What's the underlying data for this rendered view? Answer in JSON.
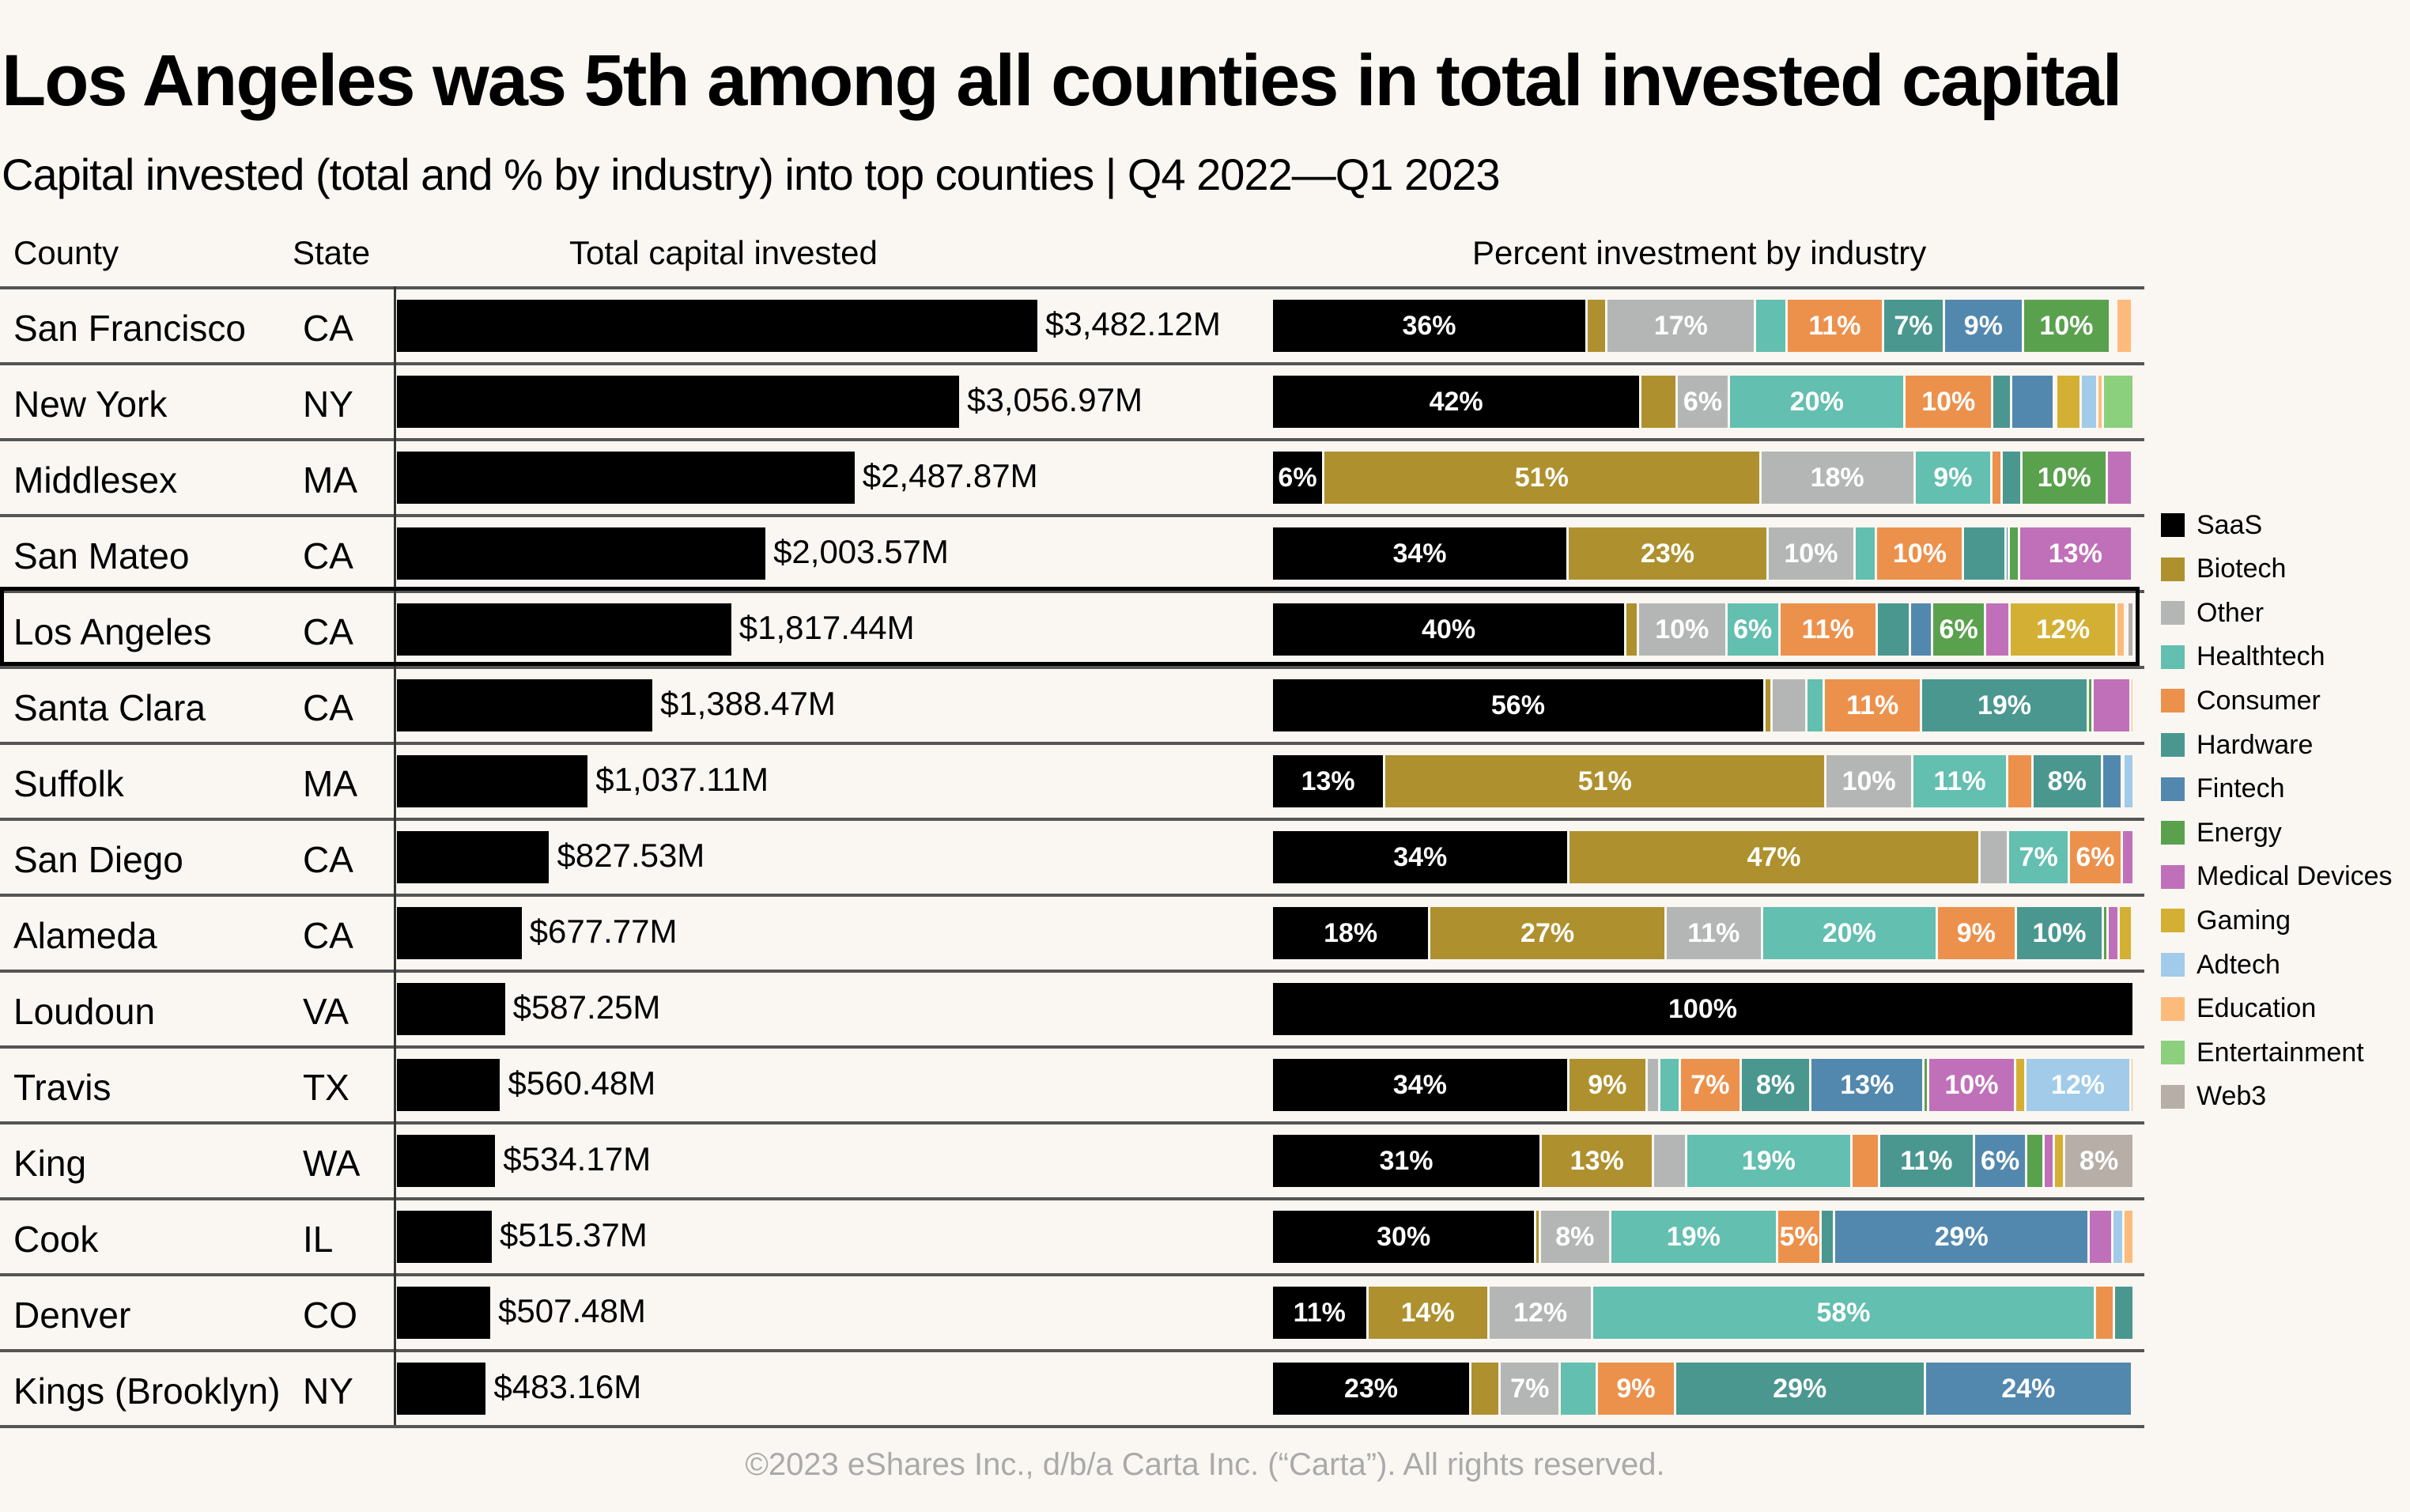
{
  "title": "Los Angeles was 5th among all counties in total invested capital",
  "subtitle": "Capital invested (total and % by industry) into top counties  |  Q4 2022—Q1 2023",
  "headers": {
    "county": "County",
    "state": "State",
    "total": "Total capital invested",
    "percent": "Percent investment by industry"
  },
  "footer": "©2023 eShares Inc., d/b/a Carta Inc. (“Carta”). All rights reserved.",
  "highlighted_county": "Los Angeles",
  "chart_data": [
    {
      "type": "bar",
      "title": "Total capital invested",
      "unit": "$M",
      "categories": [
        "San Francisco",
        "New York",
        "Middlesex",
        "San Mateo",
        "Los Angeles",
        "Santa Clara",
        "Suffolk",
        "San Diego",
        "Alameda",
        "Loudoun",
        "Travis",
        "King",
        "Cook",
        "Denver",
        "Kings (Brooklyn)"
      ],
      "states": [
        "CA",
        "NY",
        "MA",
        "CA",
        "CA",
        "CA",
        "MA",
        "CA",
        "CA",
        "VA",
        "TX",
        "WA",
        "IL",
        "CO",
        "NY"
      ],
      "values": [
        3482.12,
        3056.97,
        2487.87,
        2003.57,
        1817.44,
        1388.47,
        1037.11,
        827.53,
        677.77,
        587.25,
        560.48,
        534.17,
        515.37,
        507.48,
        483.16
      ],
      "labels": [
        "$3,482.12M",
        "$3,056.97M",
        "$2,487.87M",
        "$2,003.57M",
        "$1,817.44M",
        "$1,388.47M",
        "$1,037.11M",
        "$827.53M",
        "$677.77M",
        "$587.25M",
        "$560.48M",
        "$534.17M",
        "$515.37M",
        "$507.48M",
        "$483.16M"
      ]
    },
    {
      "type": "bar",
      "stacked": "percent",
      "title": "Percent investment by industry",
      "legend_position": "right",
      "series_names": [
        "SaaS",
        "Biotech",
        "Other",
        "Healthtech",
        "Consumer",
        "Hardware",
        "Fintech",
        "Energy",
        "Medical Devices",
        "Gaming",
        "Adtech",
        "Education",
        "Entertainment",
        "Web3"
      ],
      "colors": [
        "#000000",
        "#ae912e",
        "#b4b6b6",
        "#63bfaf",
        "#ec914c",
        "#4a9790",
        "#5388ae",
        "#5aa14e",
        "#c070b8",
        "#d3b034",
        "#a1cbe8",
        "#fdbb7b",
        "#8bd07d",
        "#b7aea8"
      ],
      "rows": [
        [
          36,
          2.3,
          17,
          3.6,
          11,
          7,
          9,
          10,
          0.3,
          0.1,
          0.3,
          1.8,
          0,
          0.2
        ],
        [
          42,
          4.1,
          6,
          20,
          10,
          2.1,
          4.9,
          0,
          0.3,
          2.8,
          1.9,
          0.6,
          3.5,
          0
        ],
        [
          6,
          51,
          18,
          9,
          1.2,
          2.3,
          0,
          10,
          2.9,
          0.2,
          0,
          0,
          0,
          0
        ],
        [
          34,
          23,
          10,
          2.5,
          10,
          4.9,
          0.3,
          1.2,
          13,
          0.2,
          0,
          0,
          0,
          0
        ],
        [
          40,
          1.4,
          10,
          6,
          11,
          3.8,
          2.5,
          6,
          2.8,
          12,
          0,
          1,
          0.3,
          0.7
        ],
        [
          56,
          0.8,
          4,
          2,
          11,
          19,
          0,
          0.5,
          4.3,
          0,
          0,
          0.4,
          0,
          0
        ],
        [
          13,
          51,
          10,
          11,
          2.9,
          8,
          2.3,
          0,
          0.2,
          0,
          1.2,
          0,
          0,
          0
        ],
        [
          34,
          47,
          3.3,
          7,
          6,
          0,
          0,
          0,
          1.4,
          0,
          0,
          0,
          0,
          0
        ],
        [
          18,
          27,
          11,
          20,
          9,
          10,
          0,
          0.5,
          1.3,
          1.5,
          0.2,
          0,
          0,
          0
        ],
        [
          100,
          0,
          0,
          0,
          0,
          0,
          0,
          0,
          0,
          0,
          0,
          0,
          0,
          0
        ],
        [
          34,
          9,
          1.5,
          2.3,
          7,
          8,
          13,
          0.5,
          10,
          1.2,
          12,
          0.4,
          0,
          0
        ],
        [
          31,
          13,
          3.8,
          19,
          3.2,
          11,
          6,
          2,
          1.2,
          1.2,
          0,
          0,
          0,
          8
        ],
        [
          30,
          0.5,
          8,
          19,
          5,
          1.5,
          29,
          0,
          2.7,
          0,
          1.2,
          1.2,
          0,
          0
        ],
        [
          11,
          14,
          12,
          58,
          2.2,
          2.3,
          0,
          0,
          0,
          0,
          0,
          0,
          0,
          0
        ],
        [
          23,
          3.4,
          7,
          4.3,
          9,
          29,
          24,
          0,
          0,
          0,
          0,
          0.2,
          0,
          0
        ]
      ]
    }
  ]
}
